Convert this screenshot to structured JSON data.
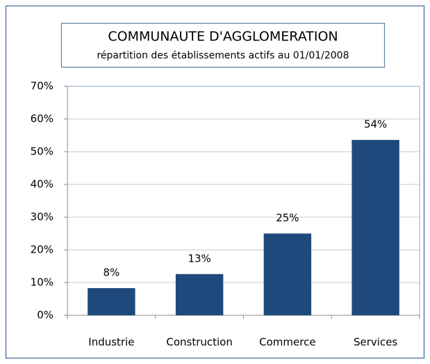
{
  "chart_data": {
    "type": "bar",
    "title": "COMMUNAUTE D'AGGLOMERATION",
    "subtitle": "répartition des établissements actifs au 01/01/2008",
    "categories": [
      "Industrie",
      "Construction",
      "Commerce",
      "Services"
    ],
    "values": [
      8.3,
      12.6,
      25,
      53.6
    ],
    "value_labels": [
      "8%",
      "13%",
      "25%",
      "54%"
    ],
    "color": "#1f497d",
    "ylim": [
      0,
      70
    ],
    "yticks": [
      {
        "value": 0,
        "label": "0%"
      },
      {
        "value": 10,
        "label": "10%"
      },
      {
        "value": 20,
        "label": "20%"
      },
      {
        "value": 30,
        "label": "30%"
      },
      {
        "value": 40,
        "label": "40%"
      },
      {
        "value": 50,
        "label": "50%"
      },
      {
        "value": 60,
        "label": "60%"
      },
      {
        "value": 70,
        "label": "70%"
      }
    ],
    "grid": true
  }
}
